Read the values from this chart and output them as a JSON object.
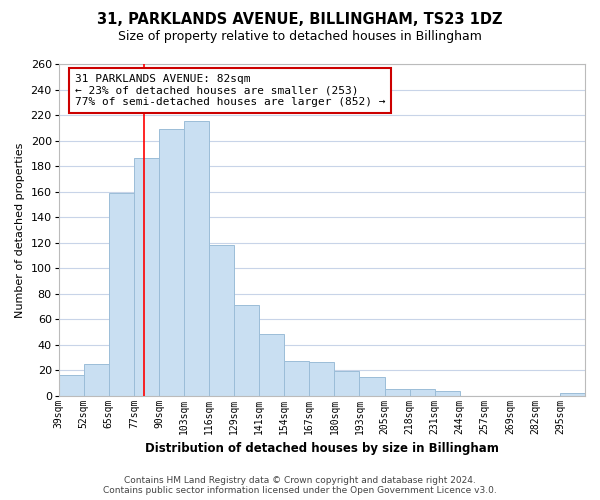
{
  "title": "31, PARKLANDS AVENUE, BILLINGHAM, TS23 1DZ",
  "subtitle": "Size of property relative to detached houses in Billingham",
  "xlabel": "Distribution of detached houses by size in Billingham",
  "ylabel": "Number of detached properties",
  "categories": [
    "39sqm",
    "52sqm",
    "65sqm",
    "77sqm",
    "90sqm",
    "103sqm",
    "116sqm",
    "129sqm",
    "141sqm",
    "154sqm",
    "167sqm",
    "180sqm",
    "193sqm",
    "205sqm",
    "218sqm",
    "231sqm",
    "244sqm",
    "257sqm",
    "269sqm",
    "282sqm",
    "295sqm"
  ],
  "values": [
    16,
    25,
    159,
    186,
    209,
    215,
    118,
    71,
    48,
    27,
    26,
    19,
    15,
    5,
    5,
    4,
    0,
    0,
    0,
    0,
    2
  ],
  "bar_color": "#c9dff2",
  "bar_edge_color": "#9bbdd8",
  "property_line_index": 3.77,
  "annotation_title": "31 PARKLANDS AVENUE: 82sqm",
  "annotation_line1": "← 23% of detached houses are smaller (253)",
  "annotation_line2": "77% of semi-detached houses are larger (852) →",
  "annotation_box_color": "#ffffff",
  "annotation_box_edge": "#cc0000",
  "ylim": [
    0,
    260
  ],
  "yticks": [
    0,
    20,
    40,
    60,
    80,
    100,
    120,
    140,
    160,
    180,
    200,
    220,
    240,
    260
  ],
  "background_color": "#ffffff",
  "grid_color": "#c8d4e8",
  "footer_line1": "Contains HM Land Registry data © Crown copyright and database right 2024.",
  "footer_line2": "Contains public sector information licensed under the Open Government Licence v3.0."
}
